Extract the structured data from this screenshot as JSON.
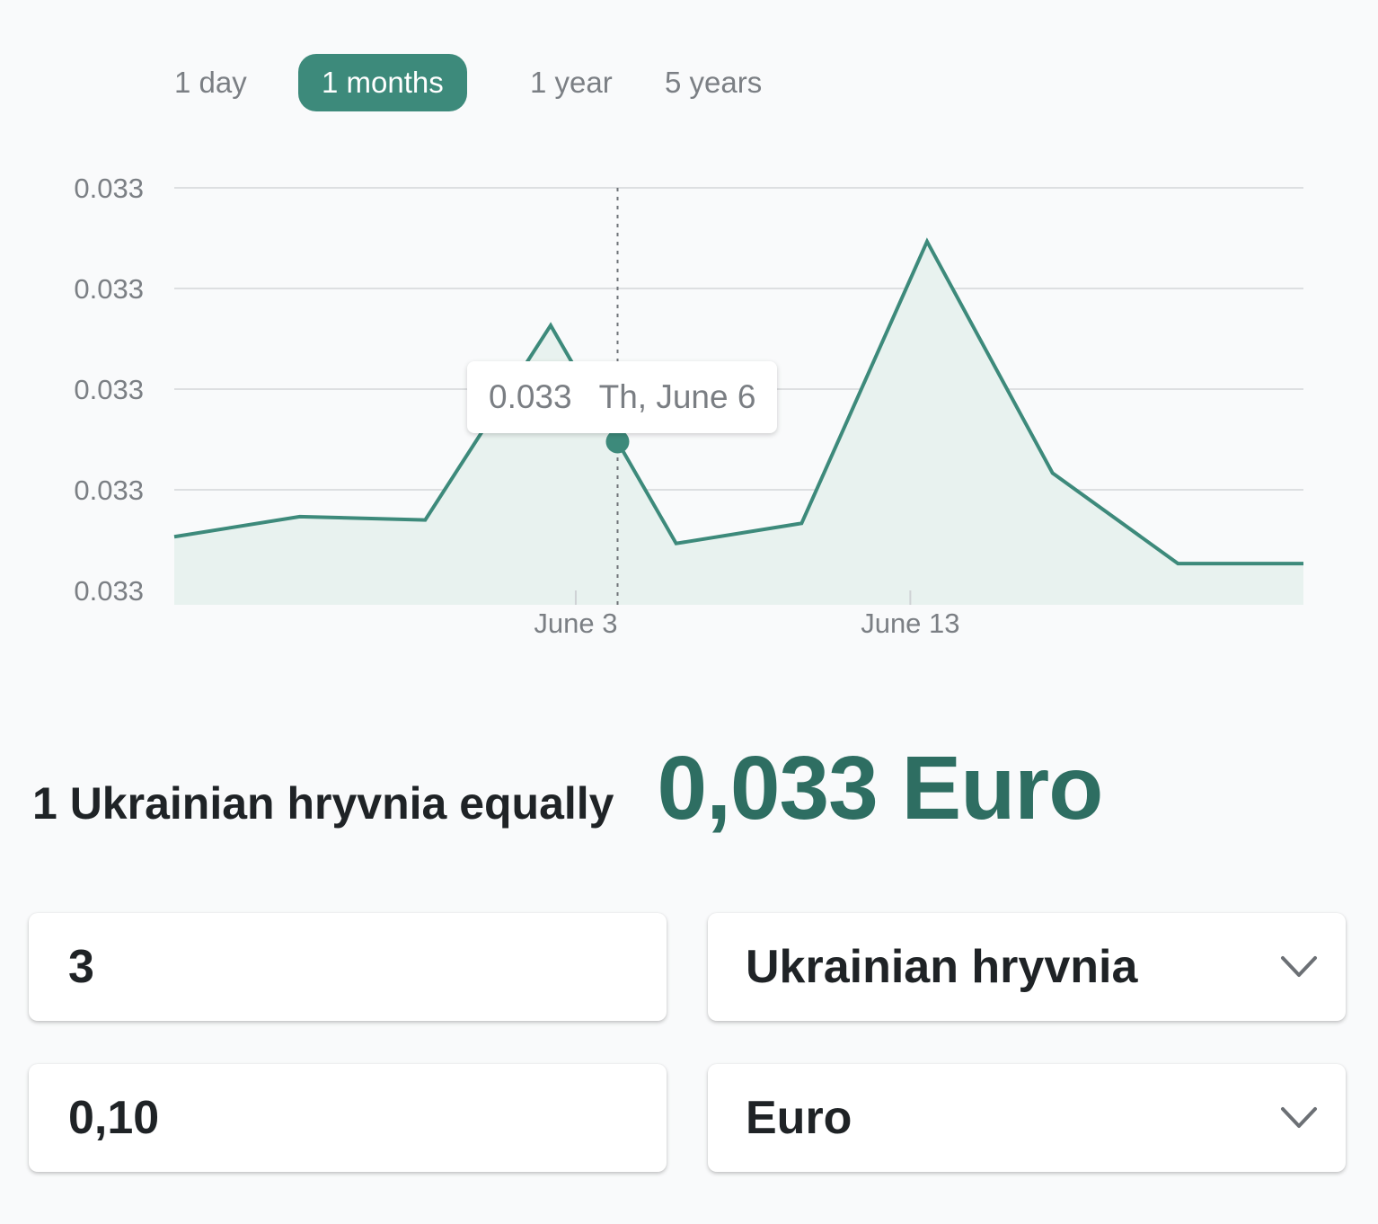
{
  "range_tabs": [
    {
      "label": "1 day",
      "active": false
    },
    {
      "label": "1 months",
      "active": true
    },
    {
      "label": "1 year",
      "active": false
    },
    {
      "label": "5 years",
      "active": false
    }
  ],
  "colors": {
    "accent": "#3d8a7b",
    "accent_dark": "#2e6e62",
    "area_fill": "#e8f2ef",
    "text_muted": "#7b7f84",
    "text_dark": "#1f2326"
  },
  "chart_data": {
    "type": "area",
    "y_tick_labels": [
      "0.033",
      "0.033",
      "0.033",
      "0.033",
      "0.033"
    ],
    "x_tick_labels": [
      "June 3",
      "June 13"
    ],
    "x_ticks": [
      3,
      13
    ],
    "x": [
      -9,
      -5.25,
      -1.5,
      2.25,
      6,
      9.75,
      13.5,
      17.25,
      21,
      24.75
    ],
    "values": [
      0.03296,
      0.03302,
      0.03301,
      0.03359,
      0.03294,
      0.033,
      0.03384,
      0.03315,
      0.03288,
      0.03288
    ],
    "xlim": [
      -9,
      24.75
    ],
    "ylim": [
      0.0328,
      0.034
    ],
    "y_gridline_values": [
      0.03284,
      0.03314,
      0.03344,
      0.03374,
      0.03404
    ],
    "hover": {
      "x": 4.25,
      "value": "0.033",
      "date": "Th, June 6"
    },
    "grid": true
  },
  "conversion": {
    "label": "1 Ukrainian hryvnia equally",
    "result": "0,033 Euro"
  },
  "converter": {
    "amount_from": "3",
    "currency_from": "Ukrainian hryvnia",
    "amount_to": "0,10",
    "currency_to": "Euro"
  }
}
